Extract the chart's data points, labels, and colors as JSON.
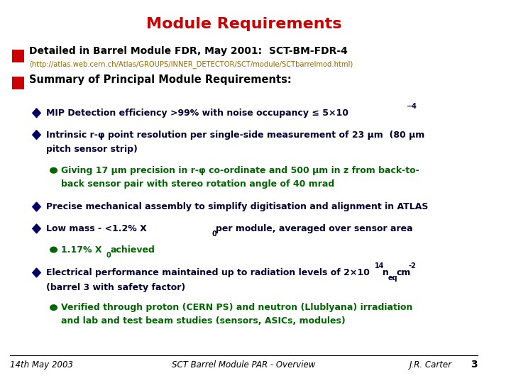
{
  "title": "Module Requirements",
  "title_color": "#CC0000",
  "bg_color": "#FFFFFF",
  "footer_left": "14th May 2003",
  "footer_center": "SCT Barrel Module PAR - Overview",
  "footer_right": "J.R. Carter",
  "footer_page": "3"
}
